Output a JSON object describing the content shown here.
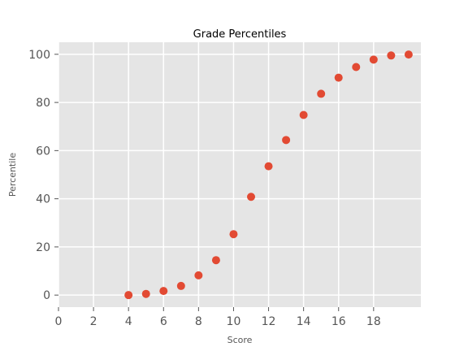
{
  "chart_data": {
    "type": "scatter",
    "title": "Grade Percentiles",
    "xlabel": "Score",
    "ylabel": "Percentile",
    "xlim": [
      0,
      20.7
    ],
    "ylim": [
      -5,
      105
    ],
    "xticks": [
      0,
      2,
      4,
      6,
      8,
      10,
      12,
      14,
      16,
      18
    ],
    "yticks": [
      0,
      20,
      40,
      60,
      80,
      100
    ],
    "grid": true,
    "colors": {
      "background": "#E5E5E5",
      "grid": "#FFFFFF",
      "marker": "#E24A33",
      "tick": "#555555"
    },
    "series": [
      {
        "x": [
          4,
          5,
          6,
          7,
          8,
          9,
          10,
          11,
          12,
          13,
          14,
          15,
          16,
          17,
          18,
          19,
          20
        ],
        "y": [
          0,
          0.5,
          1.7,
          3.8,
          8.2,
          14.5,
          25.3,
          40.8,
          53.5,
          64.4,
          74.8,
          83.6,
          90.3,
          94.7,
          97.8,
          99.5,
          99.9
        ]
      }
    ]
  }
}
